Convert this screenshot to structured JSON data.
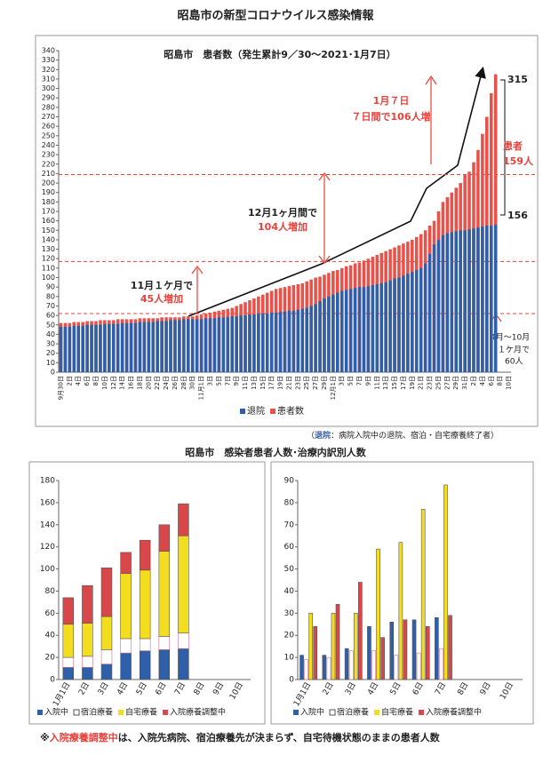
{
  "title": "昭島市の新型コロナウイルス感染情報",
  "section_title": "昭島市　感染者患者人数･治療内訳別人数",
  "note_parts": [
    "※",
    "入院療養調整中",
    "は、入院先病院、宿泊療養先が決まらず、自宅待機状態のままの患者人数"
  ],
  "chart_data": [
    {
      "type": "bar",
      "mode": "overlap",
      "title": "昭島市　患者数（発生累計9／30～2021･1月7日）",
      "categories": [
        "9月30日",
        null,
        "2日",
        null,
        "4日",
        null,
        "6日",
        null,
        "8日",
        null,
        "10日",
        null,
        "12日",
        null,
        "14日",
        null,
        "16日",
        null,
        "18日",
        null,
        "20日",
        null,
        "22日",
        null,
        "24日",
        null,
        "26日",
        null,
        "28日",
        null,
        "30日",
        null,
        "11月1日",
        null,
        "3日",
        null,
        "5日",
        null,
        "7日",
        null,
        "9日",
        null,
        "11日",
        null,
        "13日",
        null,
        "15日",
        null,
        "17日",
        null,
        "19日",
        null,
        "21日",
        null,
        "23日",
        null,
        "25日",
        null,
        "27日",
        null,
        "29日",
        null,
        "12月1日",
        null,
        "3日",
        null,
        "5日",
        null,
        "7日",
        null,
        "9日",
        null,
        "11日",
        null,
        "13日",
        null,
        "15日",
        null,
        "17日",
        null,
        "19日",
        null,
        "21日",
        null,
        "23日",
        null,
        "25日",
        null,
        "27日",
        null,
        "29日",
        null,
        "31日",
        null,
        "2日",
        null,
        "4日",
        null,
        "6日",
        null,
        "8日",
        null,
        "10日"
      ],
      "series": [
        {
          "name": "退院",
          "color": "#2f5fa8",
          "values": [
            48,
            48,
            48,
            49,
            49,
            49,
            50,
            50,
            50,
            50,
            51,
            51,
            51,
            51,
            52,
            52,
            52,
            52,
            53,
            53,
            53,
            53,
            54,
            54,
            54,
            55,
            55,
            55,
            56,
            56,
            56,
            56,
            56,
            57,
            57,
            57,
            58,
            58,
            58,
            59,
            59,
            60,
            60,
            61,
            61,
            62,
            62,
            62,
            63,
            63,
            64,
            64,
            65,
            65,
            66,
            67,
            68,
            70,
            72,
            75,
            78,
            80,
            82,
            84,
            86,
            87,
            88,
            89,
            90,
            90,
            91,
            92,
            93,
            94,
            95,
            97,
            99,
            100,
            102,
            104,
            106,
            108,
            110,
            115,
            125,
            135,
            140,
            145,
            147,
            148,
            149,
            150,
            150,
            151,
            152,
            153,
            154,
            155,
            155,
            156,
            null,
            null,
            null
          ]
        },
        {
          "name": "患者数",
          "color": "#e8524a",
          "values": [
            52,
            52,
            52,
            53,
            53,
            53,
            54,
            54,
            54,
            55,
            55,
            55,
            55,
            56,
            56,
            56,
            56,
            56,
            57,
            57,
            57,
            57,
            57,
            58,
            58,
            58,
            58,
            58,
            59,
            59,
            59,
            60,
            61,
            62,
            63,
            64,
            65,
            66,
            67,
            68,
            70,
            72,
            74,
            76,
            78,
            80,
            82,
            84,
            86,
            88,
            89,
            90,
            91,
            92,
            93,
            94,
            96,
            98,
            100,
            101,
            103,
            105,
            107,
            108,
            110,
            112,
            113,
            115,
            116,
            118,
            120,
            122,
            124,
            126,
            128,
            130,
            132,
            134,
            136,
            138,
            140,
            143,
            146,
            150,
            155,
            160,
            170,
            180,
            185,
            190,
            195,
            200,
            209,
            212,
            222,
            235,
            252,
            270,
            295,
            315,
            null,
            null,
            null
          ]
        }
      ],
      "ylim": [
        0,
        340
      ],
      "yticks": [
        0,
        10,
        20,
        30,
        40,
        50,
        60,
        70,
        80,
        90,
        100,
        110,
        120,
        130,
        140,
        150,
        160,
        170,
        180,
        190,
        200,
        210,
        220,
        230,
        240,
        250,
        260,
        270,
        280,
        290,
        300,
        310,
        320,
        330,
        340
      ],
      "reference_lines": [
        62,
        117,
        209
      ],
      "annotations": [
        "11月１ケ月で",
        "45人増加",
        "12月1ヶ月間で",
        "104人増加",
        "1月７日",
        "７日間で106人増",
        "315",
        "156",
        "患者",
        "159人",
        "4月～10月",
        "１ケ月で",
        "60人"
      ],
      "legend": "bottom",
      "note_parts": [
        "（",
        "退院",
        "：病院入院中の退院、宿泊・自宅療養終了者）"
      ]
    },
    {
      "type": "bar",
      "mode": "stacked",
      "categories": [
        "1月1日",
        "2日",
        "3日",
        "4日",
        "5日",
        "6日",
        "7日",
        "8日",
        "9日",
        "10日"
      ],
      "series": [
        {
          "name": "入院中",
          "color": "#2f5fa8",
          "values": [
            11,
            11,
            14,
            24,
            26,
            27,
            28,
            null,
            null,
            null
          ]
        },
        {
          "name": "宿泊療養",
          "color": "#ffffff",
          "values": [
            9,
            10,
            13,
            13,
            11,
            12,
            14,
            null,
            null,
            null
          ]
        },
        {
          "name": "自宅療養",
          "color": "#f2de1f",
          "values": [
            30,
            30,
            30,
            59,
            62,
            77,
            88,
            null,
            null,
            null
          ]
        },
        {
          "name": "入院療養調整中",
          "color": "#d8474a",
          "values": [
            24,
            34,
            44,
            19,
            27,
            24,
            29,
            null,
            null,
            null
          ]
        }
      ],
      "ylim": [
        0,
        180
      ],
      "yticks": [
        0,
        20,
        40,
        60,
        80,
        100,
        120,
        140,
        160,
        180
      ],
      "legend": "bottom"
    },
    {
      "type": "bar",
      "mode": "grouped",
      "categories": [
        "1月1日",
        "2日",
        "3日",
        "4日",
        "5日",
        "6日",
        "7日",
        "8日",
        "9日",
        "10日"
      ],
      "series": [
        {
          "name": "入院中",
          "color": "#2f5fa8",
          "values": [
            11,
            11,
            14,
            24,
            26,
            27,
            28,
            null,
            null,
            null
          ]
        },
        {
          "name": "宿泊療養",
          "color": "#ffffff",
          "values": [
            9,
            10,
            13,
            13,
            11,
            12,
            14,
            null,
            null,
            null
          ]
        },
        {
          "name": "自宅療養",
          "color": "#f2de1f",
          "values": [
            30,
            30,
            30,
            59,
            62,
            77,
            88,
            null,
            null,
            null
          ]
        },
        {
          "name": "入院療養調整中",
          "color": "#d8474a",
          "values": [
            24,
            34,
            44,
            19,
            27,
            24,
            29,
            null,
            null,
            null
          ]
        }
      ],
      "ylim": [
        0,
        90
      ],
      "yticks": [
        0,
        10,
        20,
        30,
        40,
        50,
        60,
        70,
        80,
        90
      ],
      "legend": "bottom"
    }
  ]
}
